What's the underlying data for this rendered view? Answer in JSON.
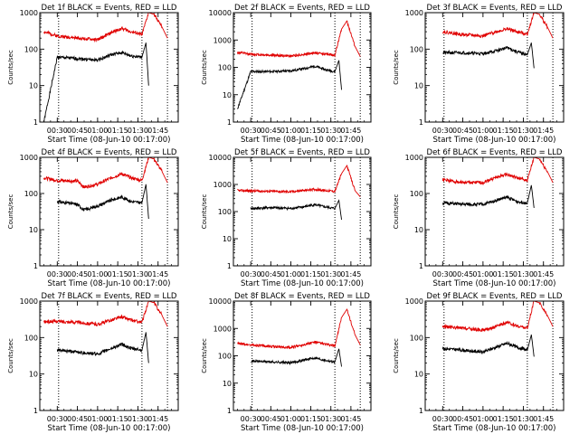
{
  "figure": {
    "start_time_label": "Start Time (08-Jun-10 00:17:00)",
    "ylabel": "Counts/sec",
    "colors": {
      "events": "#000000",
      "lld": "#e00000",
      "axis": "#000000"
    }
  },
  "chart_data": [
    {
      "type": "line",
      "detector": "1f",
      "title": "Det 1f BLACK = Events, RED = LLD",
      "xlabel": "Start Time (08-Jun-10 00:17:00)",
      "ylabel": "Counts/sec",
      "yscale": "log",
      "ylim": [
        1,
        1000
      ],
      "yticks": [
        1,
        10,
        100,
        1000
      ],
      "ytick_labels": [
        "1",
        "10",
        "100",
        "1000"
      ],
      "xticks": [
        "00:30",
        "00:45",
        "01:00",
        "01:15",
        "01:30",
        "01:45"
      ],
      "dotted_markers": [
        "00:31",
        "01:33",
        "01:52"
      ],
      "series": [
        {
          "name": "Events",
          "x": [
            "00:20",
            "00:30",
            "00:45",
            "01:00",
            "01:10",
            "01:18",
            "01:25",
            "01:33",
            "01:36",
            "01:38"
          ],
          "values": [
            1,
            60,
            55,
            50,
            70,
            80,
            65,
            60,
            150,
            10
          ]
        },
        {
          "name": "LLD",
          "x": [
            "00:20",
            "00:30",
            "00:45",
            "01:00",
            "01:10",
            "01:18",
            "01:25",
            "01:33",
            "01:38",
            "01:42",
            "01:48",
            "01:52"
          ],
          "values": [
            300,
            230,
            200,
            180,
            280,
            370,
            300,
            250,
            1000,
            900,
            400,
            200
          ]
        }
      ]
    },
    {
      "type": "line",
      "detector": "2f",
      "title": "Det 2f BLACK = Events, RED = LLD",
      "xlabel": "Start Time (08-Jun-10 00:17:00)",
      "ylabel": "Counts/sec",
      "yscale": "log",
      "ylim": [
        1,
        10000
      ],
      "yticks": [
        1,
        10,
        100,
        1000,
        10000
      ],
      "ytick_labels": [
        "1",
        "10",
        "100",
        "1000",
        "10000"
      ],
      "xticks": [
        "00:30",
        "00:45",
        "01:00",
        "01:15",
        "01:30",
        "01:45"
      ],
      "dotted_markers": [
        "00:31",
        "01:33",
        "01:52"
      ],
      "series": [
        {
          "name": "Events",
          "x": [
            "00:20",
            "00:30",
            "00:45",
            "01:00",
            "01:10",
            "01:18",
            "01:25",
            "01:33",
            "01:36",
            "01:38"
          ],
          "values": [
            3,
            70,
            70,
            75,
            90,
            110,
            85,
            70,
            180,
            15
          ]
        },
        {
          "name": "LLD",
          "x": [
            "00:20",
            "00:30",
            "00:45",
            "01:00",
            "01:10",
            "01:18",
            "01:25",
            "01:33",
            "01:38",
            "01:42",
            "01:48",
            "01:52"
          ],
          "values": [
            350,
            300,
            280,
            260,
            300,
            340,
            310,
            280,
            2500,
            5000,
            600,
            250
          ]
        }
      ]
    },
    {
      "type": "line",
      "detector": "3f",
      "title": "Det 3f BLACK = Events, RED = LLD",
      "xlabel": "Start Time (08-Jun-10 00:17:00)",
      "ylabel": "Counts/sec",
      "yscale": "log",
      "ylim": [
        1,
        1000
      ],
      "yticks": [
        1,
        10,
        100,
        1000
      ],
      "ytick_labels": [
        "1",
        "10",
        "100",
        "1000"
      ],
      "xticks": [
        "00:30",
        "00:45",
        "01:00",
        "01:15",
        "01:30",
        "01:45"
      ],
      "dotted_markers": [
        "00:31",
        "01:33",
        "01:52"
      ],
      "series": [
        {
          "name": "Events",
          "x": [
            "00:30",
            "00:45",
            "01:00",
            "01:10",
            "01:18",
            "01:25",
            "01:33",
            "01:36",
            "01:38"
          ],
          "values": [
            80,
            80,
            75,
            90,
            110,
            85,
            70,
            150,
            30
          ]
        },
        {
          "name": "LLD",
          "x": [
            "00:30",
            "00:45",
            "01:00",
            "01:10",
            "01:18",
            "01:25",
            "01:33",
            "01:38",
            "01:42",
            "01:48",
            "01:52"
          ],
          "values": [
            300,
            250,
            230,
            300,
            360,
            300,
            260,
            1000,
            900,
            400,
            200
          ]
        }
      ]
    },
    {
      "type": "line",
      "detector": "4f",
      "title": "Det 4f BLACK = Events, RED = LLD",
      "xlabel": "Start Time (08-Jun-10 00:17:00)",
      "ylabel": "Counts/sec",
      "yscale": "log",
      "ylim": [
        1,
        1000
      ],
      "yticks": [
        1,
        10,
        100,
        1000
      ],
      "ytick_labels": [
        "1",
        "10",
        "100",
        "1000"
      ],
      "xticks": [
        "00:30",
        "00:45",
        "01:00",
        "01:15",
        "01:30",
        "01:45"
      ],
      "dotted_markers": [
        "00:31",
        "01:33",
        "01:52"
      ],
      "series": [
        {
          "name": "Events",
          "x": [
            "00:30",
            "00:45",
            "00:50",
            "01:00",
            "01:10",
            "01:18",
            "01:25",
            "01:33",
            "01:36",
            "01:38"
          ],
          "values": [
            60,
            50,
            35,
            45,
            65,
            80,
            60,
            55,
            180,
            20
          ]
        },
        {
          "name": "LLD",
          "x": [
            "00:20",
            "00:30",
            "00:45",
            "00:50",
            "01:00",
            "01:10",
            "01:18",
            "01:25",
            "01:33",
            "01:38",
            "01:42",
            "01:48",
            "01:52"
          ],
          "values": [
            270,
            230,
            220,
            150,
            180,
            270,
            350,
            270,
            230,
            1000,
            900,
            400,
            200
          ]
        }
      ]
    },
    {
      "type": "line",
      "detector": "5f",
      "title": "Det 5f BLACK = Events, RED = LLD",
      "xlabel": "Start Time (08-Jun-10 00:17:00)",
      "ylabel": "Counts/sec",
      "yscale": "log",
      "ylim": [
        1,
        10000
      ],
      "yticks": [
        1,
        10,
        100,
        1000,
        10000
      ],
      "ytick_labels": [
        "1",
        "10",
        "100",
        "1000",
        "10000"
      ],
      "xticks": [
        "00:30",
        "00:45",
        "01:00",
        "01:15",
        "01:30",
        "01:45"
      ],
      "dotted_markers": [
        "00:31",
        "01:33",
        "01:52"
      ],
      "series": [
        {
          "name": "Events",
          "x": [
            "00:30",
            "00:45",
            "01:00",
            "01:10",
            "01:18",
            "01:25",
            "01:33",
            "01:36",
            "01:38"
          ],
          "values": [
            130,
            140,
            130,
            150,
            180,
            150,
            130,
            260,
            50
          ]
        },
        {
          "name": "LLD",
          "x": [
            "00:20",
            "00:30",
            "00:45",
            "01:00",
            "01:10",
            "01:18",
            "01:25",
            "01:33",
            "01:38",
            "01:42",
            "01:48",
            "01:52"
          ],
          "values": [
            600,
            580,
            560,
            540,
            600,
            660,
            600,
            560,
            2500,
            5000,
            600,
            350
          ]
        }
      ]
    },
    {
      "type": "line",
      "detector": "6f",
      "title": "Det 6f BLACK = Events, RED = LLD",
      "xlabel": "Start Time (08-Jun-10 00:17:00)",
      "ylabel": "Counts/sec",
      "yscale": "log",
      "ylim": [
        1,
        1000
      ],
      "yticks": [
        1,
        10,
        100,
        1000
      ],
      "ytick_labels": [
        "1",
        "10",
        "100",
        "1000"
      ],
      "xticks": [
        "00:30",
        "00:45",
        "01:00",
        "01:15",
        "01:30",
        "01:45"
      ],
      "dotted_markers": [
        "00:31",
        "01:33",
        "01:52"
      ],
      "series": [
        {
          "name": "Events",
          "x": [
            "00:30",
            "00:45",
            "01:00",
            "01:10",
            "01:18",
            "01:25",
            "01:33",
            "01:36",
            "01:38"
          ],
          "values": [
            55,
            50,
            50,
            65,
            80,
            60,
            55,
            170,
            40
          ]
        },
        {
          "name": "LLD",
          "x": [
            "00:30",
            "00:45",
            "01:00",
            "01:10",
            "01:18",
            "01:25",
            "01:33",
            "01:38",
            "01:42",
            "01:48",
            "01:52"
          ],
          "values": [
            240,
            200,
            200,
            280,
            340,
            270,
            230,
            1000,
            900,
            400,
            200
          ]
        }
      ]
    },
    {
      "type": "line",
      "detector": "7f",
      "title": "Det 7f BLACK = Events, RED = LLD",
      "xlabel": "Start Time (08-Jun-10 00:17:00)",
      "ylabel": "Counts/sec",
      "yscale": "log",
      "ylim": [
        1,
        1000
      ],
      "yticks": [
        1,
        10,
        100,
        1000
      ],
      "ytick_labels": [
        "1",
        "10",
        "100",
        "1000"
      ],
      "xticks": [
        "00:30",
        "00:45",
        "01:00",
        "01:15",
        "01:30",
        "01:45"
      ],
      "dotted_markers": [
        "00:31",
        "01:33",
        "01:52"
      ],
      "series": [
        {
          "name": "Events",
          "x": [
            "00:30",
            "00:45",
            "01:00",
            "01:10",
            "01:18",
            "01:25",
            "01:33",
            "01:36",
            "01:38"
          ],
          "values": [
            45,
            40,
            35,
            50,
            65,
            50,
            45,
            140,
            20
          ]
        },
        {
          "name": "LLD",
          "x": [
            "00:20",
            "00:30",
            "00:45",
            "01:00",
            "01:10",
            "01:18",
            "01:25",
            "01:33",
            "01:38",
            "01:42",
            "01:48",
            "01:52"
          ],
          "values": [
            270,
            280,
            260,
            230,
            300,
            370,
            300,
            260,
            1000,
            900,
            400,
            200
          ]
        }
      ]
    },
    {
      "type": "line",
      "detector": "8f",
      "title": "Det 8f BLACK = Events, RED = LLD",
      "xlabel": "Start Time (08-Jun-10 00:17:00)",
      "ylabel": "Counts/sec",
      "yscale": "log",
      "ylim": [
        1,
        10000
      ],
      "yticks": [
        1,
        10,
        100,
        1000,
        10000
      ],
      "ytick_labels": [
        "1",
        "10",
        "100",
        "1000",
        "10000"
      ],
      "xticks": [
        "00:30",
        "00:45",
        "01:00",
        "01:15",
        "01:30",
        "01:45"
      ],
      "dotted_markers": [
        "00:31",
        "01:33",
        "01:52"
      ],
      "series": [
        {
          "name": "Events",
          "x": [
            "00:30",
            "00:45",
            "01:00",
            "01:10",
            "01:18",
            "01:25",
            "01:33",
            "01:36",
            "01:38"
          ],
          "values": [
            65,
            60,
            55,
            70,
            85,
            70,
            60,
            180,
            40
          ]
        },
        {
          "name": "LLD",
          "x": [
            "00:20",
            "00:30",
            "00:45",
            "01:00",
            "01:10",
            "01:18",
            "01:25",
            "01:33",
            "01:38",
            "01:42",
            "01:48",
            "01:52"
          ],
          "values": [
            280,
            250,
            220,
            200,
            260,
            320,
            270,
            230,
            2500,
            5000,
            600,
            250
          ]
        }
      ]
    },
    {
      "type": "line",
      "detector": "9f",
      "title": "Det 9f BLACK = Events, RED = LLD",
      "xlabel": "Start Time (08-Jun-10 00:17:00)",
      "ylabel": "Counts/sec",
      "yscale": "log",
      "ylim": [
        1,
        1000
      ],
      "yticks": [
        1,
        10,
        100,
        1000
      ],
      "ytick_labels": [
        "1",
        "10",
        "100",
        "1000"
      ],
      "xticks": [
        "00:30",
        "00:45",
        "01:00",
        "01:15",
        "01:30",
        "01:45"
      ],
      "dotted_markers": [
        "00:31",
        "01:33",
        "01:52"
      ],
      "series": [
        {
          "name": "Events",
          "x": [
            "00:30",
            "00:45",
            "01:00",
            "01:10",
            "01:18",
            "01:25",
            "01:33",
            "01:36",
            "01:38"
          ],
          "values": [
            50,
            45,
            40,
            55,
            70,
            55,
            45,
            120,
            30
          ]
        },
        {
          "name": "LLD",
          "x": [
            "00:30",
            "00:45",
            "01:00",
            "01:10",
            "01:18",
            "01:25",
            "01:33",
            "01:38",
            "01:42",
            "01:48",
            "01:52"
          ],
          "values": [
            200,
            180,
            160,
            200,
            260,
            210,
            180,
            1000,
            900,
            400,
            200
          ]
        }
      ]
    }
  ]
}
